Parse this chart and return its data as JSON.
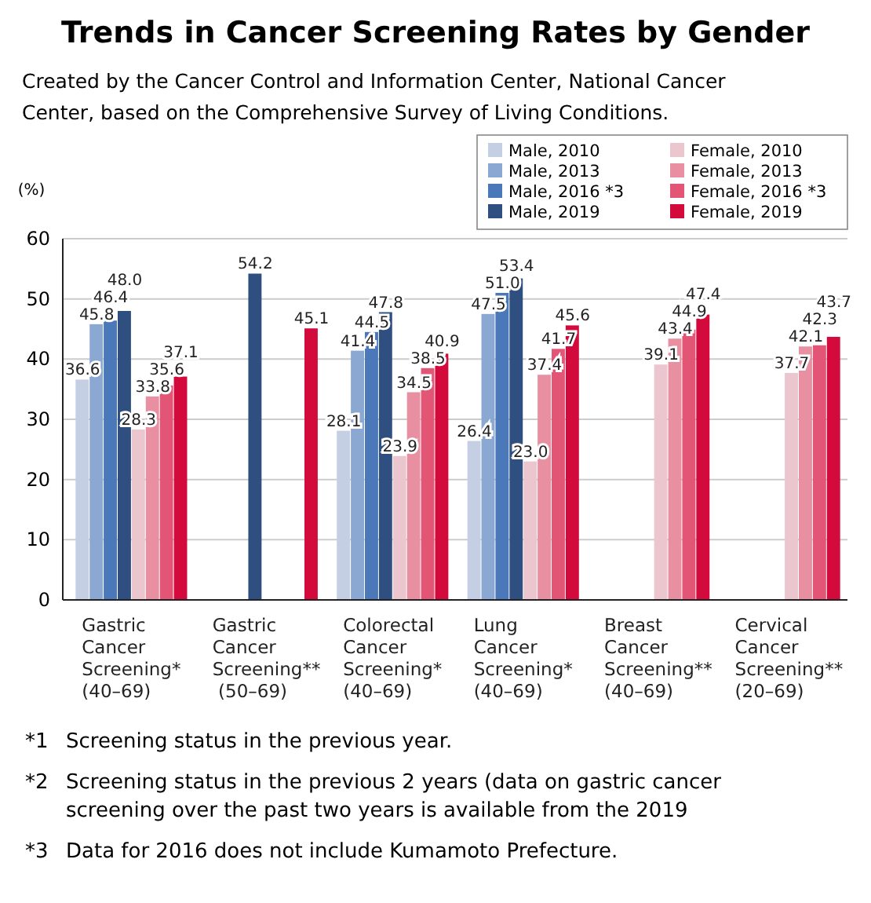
{
  "chart_data": {
    "type": "bar",
    "title": "Trends in Cancer Screening Rates by Gender",
    "subtitle": "Created by the Cancer Control and Information Center, National Cancer Center, based on the Comprehensive Survey of Living Conditions.",
    "ylabel": "(%)",
    "categories": [
      "Gastric\nCancer\nScreening*\n(40–69)",
      "Gastric\nCancer\nScreening**\n (50–69)",
      "Colorectal\nCancer\nScreening*\n(40–69)",
      "Lung\nCancer\nScreening*\n(40–69)",
      "Breast\nCancer\nScreening**\n(40–69)",
      "Cervical\nCancer\nScreening**\n(20–69)"
    ],
    "series": [
      {
        "name": "Male, 2010",
        "color": "#c5cfe4",
        "values": [
          36.6,
          null,
          28.1,
          26.4,
          null,
          null
        ],
        "value_labels": [
          "36.6",
          null,
          "28.1",
          "26.4",
          null,
          null
        ]
      },
      {
        "name": "Male, 2013",
        "color": "#8ba8d3",
        "values": [
          45.8,
          null,
          41.4,
          47.5,
          null,
          null
        ],
        "value_labels": [
          "45.8",
          null,
          "41.4",
          "47.5",
          null,
          null
        ]
      },
      {
        "name": "Male, 2016 *3",
        "color": "#4a78b8",
        "values": [
          46.4,
          null,
          44.5,
          51,
          null,
          null
        ],
        "value_labels": [
          "46.4",
          null,
          "44.5",
          "51.0",
          null,
          null
        ]
      },
      {
        "name": "Male, 2019",
        "color": "#2e4f7f",
        "values": [
          48,
          54.2,
          47.8,
          53.4,
          null,
          null
        ],
        "value_labels": [
          "48.0",
          "54.2",
          "47.8",
          "53.4",
          null,
          null
        ]
      },
      {
        "name": "Female, 2010",
        "color": "#ecc6cf",
        "values": [
          28.3,
          null,
          23.9,
          23,
          39.1,
          37.7
        ],
        "value_labels": [
          "28.3",
          null,
          "23.9",
          "23.0",
          "39.1",
          "37.7"
        ]
      },
      {
        "name": "Female, 2013",
        "color": "#e88fa2",
        "values": [
          33.8,
          null,
          34.5,
          37.4,
          43.4,
          42.1
        ],
        "value_labels": [
          "33.8",
          null,
          "34.5",
          "37.4",
          "43.4",
          "42.1"
        ]
      },
      {
        "name": "Female, 2016 *3",
        "color": "#e25574",
        "values": [
          35.6,
          null,
          38.5,
          41.7,
          44.9,
          42.3
        ],
        "value_labels": [
          "35.6",
          null,
          "38.5",
          "41.7",
          "44.9",
          "42.3"
        ]
      },
      {
        "name": "Female, 2019",
        "color": "#d20b3c",
        "values": [
          37.1,
          45.1,
          40.9,
          45.6,
          47.4,
          43.7
        ],
        "value_labels": [
          "37.1",
          "45.1",
          "40.9",
          "45.6",
          "47.4",
          "43.7"
        ]
      }
    ],
    "ylim": [
      0,
      60
    ],
    "yticks": [
      0,
      10,
      20,
      30,
      40,
      50,
      60
    ],
    "grid": "y",
    "legend": "top right",
    "annotations": [
      "*1  Screening status in the previous year.",
      "*2  Screening status in the previous 2 years (data on gastric cancer screening over the past two years is available from the 2019",
      "*3  Data for 2016 does not include Kumamoto Prefecture."
    ]
  }
}
